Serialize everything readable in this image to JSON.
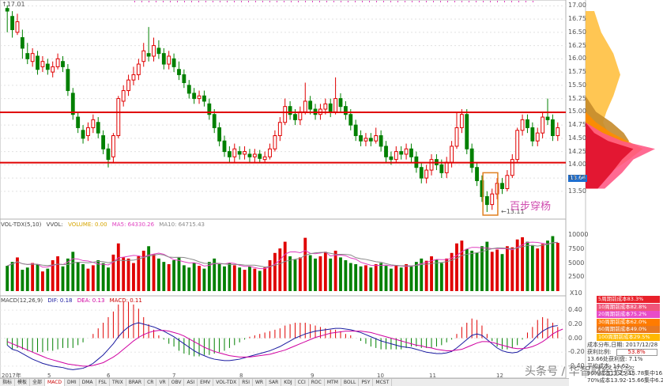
{
  "price_panel": {
    "high_label": "17.01",
    "low_label": "13.11",
    "current_price_badge": "13.66",
    "annotation": "百步穿杨",
    "axis_ticks": [
      "17.00",
      "16.75",
      "16.50",
      "16.25",
      "16.00",
      "15.75",
      "15.50",
      "15.25",
      "15.00",
      "14.75",
      "14.50",
      "14.25",
      "14.00",
      "13.75",
      "13.50"
    ],
    "resistance_level": 14.99,
    "support_level": 14.04,
    "candles": [
      [
        16.95,
        16.9,
        17.01,
        16.5
      ],
      [
        16.8,
        16.55,
        16.9,
        16.4
      ],
      [
        16.5,
        16.7,
        16.85,
        16.45
      ],
      [
        16.4,
        16.2,
        16.55,
        16.0
      ],
      [
        16.1,
        16.0,
        16.3,
        15.9
      ],
      [
        15.95,
        16.1,
        16.2,
        15.85
      ],
      [
        16.05,
        15.8,
        16.15,
        15.7
      ],
      [
        15.85,
        15.95,
        16.05,
        15.75
      ],
      [
        15.9,
        15.8,
        16.0,
        15.7
      ],
      [
        15.75,
        15.85,
        15.95,
        15.65
      ],
      [
        15.85,
        16.0,
        16.1,
        15.8
      ],
      [
        15.95,
        15.85,
        16.05,
        15.75
      ],
      [
        15.8,
        15.4,
        15.9,
        15.3
      ],
      [
        15.35,
        14.95,
        15.45,
        14.85
      ],
      [
        14.9,
        14.7,
        15.0,
        14.6
      ],
      [
        14.65,
        14.5,
        14.75,
        14.4
      ],
      [
        14.55,
        14.7,
        14.8,
        14.45
      ],
      [
        14.7,
        14.85,
        14.95,
        14.6
      ],
      [
        14.8,
        14.6,
        14.9,
        14.5
      ],
      [
        14.55,
        14.3,
        14.65,
        14.2
      ],
      [
        14.3,
        14.1,
        14.4,
        13.95
      ],
      [
        14.15,
        14.55,
        14.6,
        14.05
      ],
      [
        14.55,
        15.25,
        15.3,
        14.5
      ],
      [
        15.2,
        15.4,
        15.5,
        15.1
      ],
      [
        15.4,
        15.6,
        15.7,
        15.3
      ],
      [
        15.6,
        15.7,
        15.85,
        15.5
      ],
      [
        15.7,
        15.9,
        16.0,
        15.6
      ],
      [
        15.95,
        16.15,
        16.3,
        15.85
      ],
      [
        16.1,
        16.05,
        16.6,
        15.95
      ],
      [
        16.05,
        16.25,
        16.4,
        15.95
      ],
      [
        16.2,
        16.1,
        16.35,
        16.0
      ],
      [
        16.1,
        15.9,
        16.2,
        15.8
      ],
      [
        15.9,
        16.05,
        16.15,
        15.8
      ],
      [
        16.0,
        15.85,
        16.1,
        15.75
      ],
      [
        15.8,
        15.7,
        15.95,
        15.6
      ],
      [
        15.7,
        15.55,
        15.8,
        15.45
      ],
      [
        15.5,
        15.35,
        15.6,
        15.25
      ],
      [
        15.35,
        15.25,
        15.45,
        15.15
      ],
      [
        15.25,
        15.3,
        15.4,
        15.15
      ],
      [
        15.3,
        15.2,
        15.4,
        15.1
      ],
      [
        15.15,
        14.95,
        15.25,
        14.85
      ],
      [
        14.95,
        14.7,
        15.05,
        14.6
      ],
      [
        14.7,
        14.45,
        14.8,
        14.35
      ],
      [
        14.45,
        14.25,
        14.55,
        14.15
      ],
      [
        14.25,
        14.15,
        14.35,
        14.05
      ],
      [
        14.15,
        14.3,
        14.4,
        14.05
      ],
      [
        14.25,
        14.2,
        14.35,
        14.1
      ],
      [
        14.2,
        14.25,
        14.35,
        14.1
      ],
      [
        14.2,
        14.15,
        14.3,
        14.05
      ],
      [
        14.15,
        14.2,
        14.3,
        14.05
      ],
      [
        14.2,
        14.12,
        14.28,
        14.05
      ],
      [
        14.1,
        14.15,
        14.25,
        14.05
      ],
      [
        14.15,
        14.3,
        14.4,
        14.1
      ],
      [
        14.3,
        14.55,
        14.65,
        14.25
      ],
      [
        14.55,
        14.8,
        14.9,
        14.45
      ],
      [
        14.8,
        15.1,
        15.25,
        14.75
      ],
      [
        15.1,
        14.95,
        15.2,
        14.85
      ],
      [
        14.95,
        14.85,
        15.05,
        14.75
      ],
      [
        14.85,
        15.0,
        15.1,
        14.75
      ],
      [
        15.0,
        15.2,
        15.55,
        14.95
      ],
      [
        15.2,
        15.05,
        15.3,
        14.95
      ],
      [
        15.05,
        14.95,
        15.15,
        14.85
      ],
      [
        14.95,
        15.05,
        15.15,
        14.85
      ],
      [
        15.05,
        15.15,
        15.25,
        14.95
      ],
      [
        15.15,
        15.0,
        15.25,
        14.9
      ],
      [
        15.0,
        15.25,
        15.65,
        14.95
      ],
      [
        15.25,
        15.1,
        15.35,
        15.0
      ],
      [
        15.1,
        14.95,
        15.2,
        14.85
      ],
      [
        14.95,
        14.75,
        15.05,
        14.65
      ],
      [
        14.75,
        14.55,
        14.85,
        14.45
      ],
      [
        14.55,
        14.45,
        14.65,
        14.35
      ],
      [
        14.45,
        14.5,
        14.6,
        14.35
      ],
      [
        14.5,
        14.45,
        14.6,
        14.35
      ],
      [
        14.45,
        14.55,
        14.7,
        14.4
      ],
      [
        14.55,
        14.35,
        14.65,
        14.25
      ],
      [
        14.35,
        14.15,
        14.45,
        14.05
      ],
      [
        14.15,
        14.1,
        14.25,
        14.0
      ],
      [
        14.1,
        14.25,
        14.35,
        14.05
      ],
      [
        14.25,
        14.2,
        14.35,
        14.1
      ],
      [
        14.2,
        14.3,
        14.4,
        14.1
      ],
      [
        14.3,
        14.15,
        14.4,
        14.05
      ],
      [
        14.15,
        13.95,
        14.25,
        13.85
      ],
      [
        13.95,
        13.75,
        14.05,
        13.65
      ],
      [
        13.75,
        13.9,
        14.0,
        13.65
      ],
      [
        13.9,
        14.1,
        14.2,
        13.8
      ],
      [
        14.1,
        14.0,
        14.2,
        13.9
      ],
      [
        14.0,
        13.85,
        14.1,
        13.75
      ],
      [
        13.85,
        14.05,
        14.15,
        13.75
      ],
      [
        14.05,
        14.35,
        14.45,
        13.95
      ],
      [
        14.35,
        14.7,
        15.0,
        14.3
      ],
      [
        14.7,
        14.95,
        15.05,
        14.6
      ],
      [
        14.95,
        14.3,
        15.05,
        14.2
      ],
      [
        14.3,
        13.95,
        14.4,
        13.85
      ],
      [
        13.95,
        13.7,
        14.05,
        13.6
      ],
      [
        13.7,
        13.4,
        13.8,
        13.3
      ],
      [
        13.4,
        13.25,
        13.5,
        13.11
      ],
      [
        13.25,
        13.45,
        13.55,
        13.15
      ],
      [
        13.45,
        13.65,
        13.75,
        13.35
      ],
      [
        13.65,
        13.55,
        13.75,
        13.45
      ],
      [
        13.55,
        13.8,
        13.9,
        13.5
      ],
      [
        13.8,
        14.1,
        14.2,
        13.75
      ],
      [
        14.1,
        14.65,
        14.7,
        14.05
      ],
      [
        14.65,
        14.85,
        14.95,
        14.55
      ],
      [
        14.85,
        14.7,
        14.95,
        14.6
      ],
      [
        14.7,
        14.45,
        14.8,
        14.35
      ],
      [
        14.45,
        14.6,
        14.7,
        14.35
      ],
      [
        14.6,
        14.9,
        15.0,
        14.5
      ],
      [
        14.9,
        14.85,
        15.25,
        14.75
      ],
      [
        14.85,
        14.55,
        14.95,
        14.45
      ],
      [
        14.55,
        14.7,
        14.8,
        14.45
      ]
    ]
  },
  "volume_panel": {
    "indicator_name": "VOL-TDX(5,10)",
    "vvol_label": "VVOL:",
    "volume_label": "VOLUME: 0.00",
    "ma5_label": "MA5: 64330.26",
    "ma10_label": "MA10: 64715.43",
    "axis_ticks": [
      "10000",
      "7500",
      "5000",
      "2500"
    ],
    "unit_label": "X10",
    "volumes": [
      45,
      52,
      60,
      38,
      42,
      50,
      48,
      35,
      40,
      55,
      62,
      44,
      58,
      70,
      52,
      48,
      40,
      46,
      55,
      50,
      42,
      65,
      85,
      60,
      58,
      50,
      62,
      72,
      80,
      66,
      58,
      52,
      48,
      55,
      60,
      46,
      42,
      50,
      45,
      40,
      52,
      58,
      48,
      44,
      50,
      46,
      42,
      38,
      44,
      40,
      36,
      42,
      55,
      68,
      76,
      88,
      62,
      56,
      60,
      95,
      64,
      58,
      62,
      70,
      58,
      72,
      60,
      55,
      50,
      48,
      44,
      46,
      42,
      48,
      50,
      45,
      40,
      46,
      42,
      48,
      44,
      52,
      58,
      54,
      62,
      56,
      50,
      58,
      68,
      85,
      90,
      75,
      72,
      68,
      80,
      88,
      70,
      74,
      66,
      80,
      78,
      92,
      96,
      88,
      82,
      76,
      84,
      90,
      98,
      86
    ]
  },
  "macd_panel": {
    "indicator_name": "MACD(12,26,9)",
    "dif_label": "DIF: 0.18",
    "dea_label": "DEA: 0.13",
    "macd_label": "MACD: 0.11",
    "axis_ticks": [
      "0.40",
      "0.20",
      "0.00",
      "-0.20",
      "-0.40"
    ],
    "dif": [
      -0.1,
      -0.16,
      -0.18,
      -0.22,
      -0.26,
      -0.3,
      -0.33,
      -0.36,
      -0.38,
      -0.4,
      -0.41,
      -0.42,
      -0.44,
      -0.45,
      -0.44,
      -0.43,
      -0.4,
      -0.36,
      -0.3,
      -0.24,
      -0.16,
      -0.08,
      0.02,
      0.1,
      0.16,
      0.2,
      0.22,
      0.2,
      0.18,
      0.16,
      0.13,
      0.1,
      0.06,
      0.02,
      -0.03,
      -0.08,
      -0.13,
      -0.18,
      -0.22,
      -0.25,
      -0.28,
      -0.3,
      -0.31,
      -0.32,
      -0.32,
      -0.31,
      -0.3,
      -0.28,
      -0.26,
      -0.24,
      -0.22,
      -0.2,
      -0.18,
      -0.15,
      -0.12,
      -0.08,
      -0.04,
      0.0,
      0.03,
      0.06,
      0.08,
      0.1,
      0.11,
      0.12,
      0.13,
      0.14,
      0.14,
      0.13,
      0.12,
      0.1,
      0.08,
      0.05,
      0.02,
      -0.01,
      -0.04,
      -0.06,
      -0.08,
      -0.1,
      -0.12,
      -0.13,
      -0.14,
      -0.16,
      -0.18,
      -0.2,
      -0.21,
      -0.22,
      -0.22,
      -0.21,
      -0.19,
      -0.14,
      -0.08,
      -0.02,
      0.04,
      0.06,
      0.04,
      -0.02,
      -0.08,
      -0.14,
      -0.18,
      -0.2,
      -0.21,
      -0.2,
      -0.16,
      -0.1,
      -0.04,
      0.04,
      0.1,
      0.14,
      0.17,
      0.18
    ],
    "dea": [
      -0.05,
      -0.08,
      -0.11,
      -0.14,
      -0.17,
      -0.2,
      -0.23,
      -0.26,
      -0.29,
      -0.31,
      -0.33,
      -0.35,
      -0.37,
      -0.38,
      -0.39,
      -0.4,
      -0.4,
      -0.39,
      -0.37,
      -0.35,
      -0.31,
      -0.27,
      -0.22,
      -0.16,
      -0.1,
      -0.04,
      0.01,
      0.05,
      0.08,
      0.1,
      0.11,
      0.11,
      0.1,
      0.08,
      0.06,
      0.03,
      -0.01,
      -0.05,
      -0.09,
      -0.13,
      -0.16,
      -0.19,
      -0.21,
      -0.23,
      -0.25,
      -0.26,
      -0.27,
      -0.27,
      -0.27,
      -0.26,
      -0.25,
      -0.24,
      -0.23,
      -0.21,
      -0.19,
      -0.17,
      -0.14,
      -0.11,
      -0.08,
      -0.05,
      -0.02,
      0.01,
      0.03,
      0.05,
      0.07,
      0.08,
      0.09,
      0.1,
      0.1,
      0.1,
      0.1,
      0.09,
      0.08,
      0.06,
      0.04,
      0.02,
      0.0,
      -0.02,
      -0.04,
      -0.06,
      -0.08,
      -0.1,
      -0.11,
      -0.13,
      -0.14,
      -0.16,
      -0.17,
      -0.18,
      -0.18,
      -0.17,
      -0.16,
      -0.13,
      -0.1,
      -0.07,
      -0.05,
      -0.05,
      -0.06,
      -0.08,
      -0.1,
      -0.12,
      -0.14,
      -0.15,
      -0.15,
      -0.14,
      -0.12,
      -0.09,
      -0.05,
      0.0,
      0.06,
      0.1,
      0.13
    ]
  },
  "chip_panel": {
    "legend": [
      {
        "text": "5周期前成本83.3%",
        "color": "#e8202a"
      },
      {
        "text": "10周期前成本82.8%",
        "color": "#f0557a"
      },
      {
        "text": "20周期前成本75.2%",
        "color": "#e84cc8"
      },
      {
        "text": "30周期前成本62.0%",
        "color": "#ff7b00"
      },
      {
        "text": "60周期前成本49.0%",
        "color": "#e87820"
      },
      {
        "text": "100周期前成本29.5%",
        "color": "#ffb800"
      }
    ],
    "date_line": "成本分布,日期: 2017/12/28",
    "profit_label": "获利比例:",
    "profit_value": "53.8%",
    "avg_cost_line": "13.66处获利盘: 7.1%",
    "avg_cost2_line": "平均成本: 14.62",
    "range90_line": "90%成本13.25-15.78集中16.0%",
    "range70_line": "70%成本13.92-15.66集中6.2%"
  },
  "x_axis": {
    "labels": [
      "2017年",
      "5",
      "6",
      "7",
      "8",
      "9",
      "10",
      "11",
      "12"
    ]
  },
  "tabs": [
    "指标",
    "模板",
    "全部",
    "MACD",
    "DMI",
    "DMA",
    "FSL",
    "TRIX",
    "BRAR",
    "CR",
    "VR",
    "OBV",
    "ASI",
    "EMV",
    "VOL-TDX",
    "RSI",
    "WR",
    "SAR",
    "KDJ",
    "CCI",
    "ROC",
    "MTM",
    "BOLL",
    "PSY",
    "MCST"
  ],
  "watermark": "头条号 / 华智财经投资"
}
